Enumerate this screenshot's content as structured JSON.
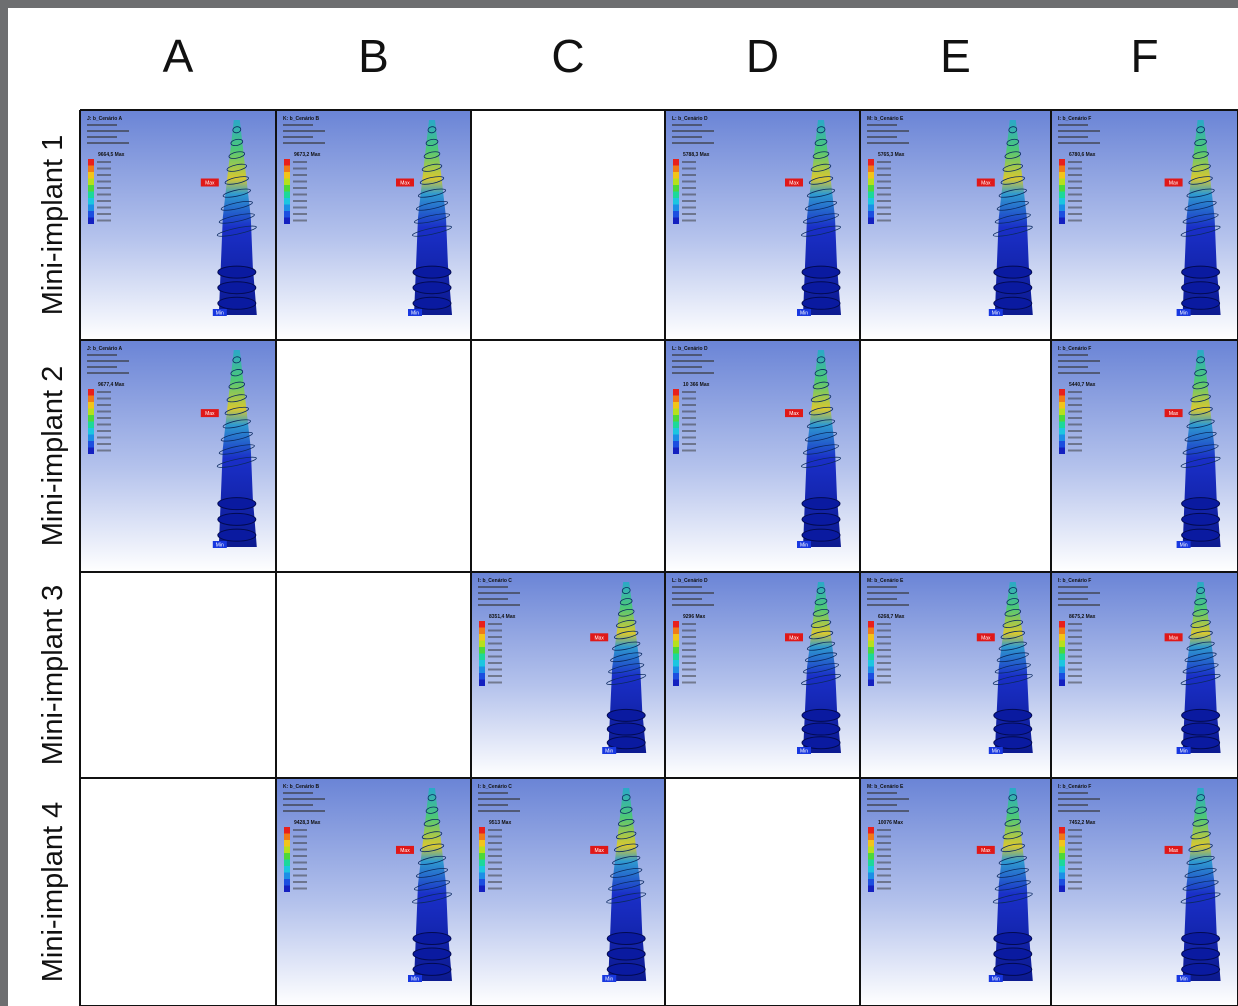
{
  "columns": [
    "A",
    "B",
    "C",
    "D",
    "E",
    "F"
  ],
  "rows": [
    "Mini-implant 1",
    "Mini-implant 2",
    "Mini-implant 3",
    "Mini-implant 4"
  ],
  "cells": [
    {
      "row": 0,
      "col": 0,
      "title": "J: b_Cenário A",
      "max": "9664,5 Max",
      "min_tag": "Min",
      "max_tag": "Max"
    },
    {
      "row": 0,
      "col": 1,
      "title": "K: b_Cenário B",
      "max": "9673,2 Max",
      "min_tag": "Min",
      "max_tag": "Max"
    },
    {
      "row": 0,
      "col": 3,
      "title": "L: b_Cenário D",
      "max": "5788,3 Max",
      "min_tag": "Min",
      "max_tag": "Max"
    },
    {
      "row": 0,
      "col": 4,
      "title": "M: b_Cenário E",
      "max": "5765,3 Max",
      "min_tag": "Min",
      "max_tag": "Max"
    },
    {
      "row": 0,
      "col": 5,
      "title": "I: b_Cenário F",
      "max": "6780,6 Max",
      "min_tag": "Min",
      "max_tag": "Max"
    },
    {
      "row": 1,
      "col": 0,
      "title": "J: b_Cenário A",
      "max": "9677,4 Max",
      "min_tag": "Min",
      "max_tag": "Max"
    },
    {
      "row": 1,
      "col": 3,
      "title": "L: b_Cenário D",
      "max": "10 366 Max",
      "min_tag": "Min",
      "max_tag": "Max"
    },
    {
      "row": 1,
      "col": 5,
      "title": "I: b_Cenário F",
      "max": "5440,7 Max",
      "min_tag": "Min",
      "max_tag": "Max"
    },
    {
      "row": 2,
      "col": 2,
      "title": "I: b_Cenário C",
      "max": "8351,4 Max",
      "min_tag": "Min",
      "max_tag": "Max"
    },
    {
      "row": 2,
      "col": 3,
      "title": "L: b_Cenário D",
      "max": "9296 Max",
      "min_tag": "Min",
      "max_tag": "Max"
    },
    {
      "row": 2,
      "col": 4,
      "title": "M: b_Cenário E",
      "max": "6268,7 Max",
      "min_tag": "Min",
      "max_tag": "Max"
    },
    {
      "row": 2,
      "col": 5,
      "title": "I: b_Cenário F",
      "max": "8675,2 Max",
      "min_tag": "Min",
      "max_tag": "Max"
    },
    {
      "row": 3,
      "col": 1,
      "title": "K: b_Cenário B",
      "max": "9428,3 Max",
      "min_tag": "Min",
      "max_tag": "Max"
    },
    {
      "row": 3,
      "col": 2,
      "title": "I: b_Cenário C",
      "max": "9513 Max",
      "min_tag": "Min",
      "max_tag": "Max"
    },
    {
      "row": 3,
      "col": 4,
      "title": "M: b_Cenário E",
      "max": "10076 Max",
      "min_tag": "Min",
      "max_tag": "Max"
    },
    {
      "row": 3,
      "col": 5,
      "title": "I: b_Cenário F",
      "max": "7452,2 Max",
      "min_tag": "Min",
      "max_tag": "Max"
    }
  ]
}
